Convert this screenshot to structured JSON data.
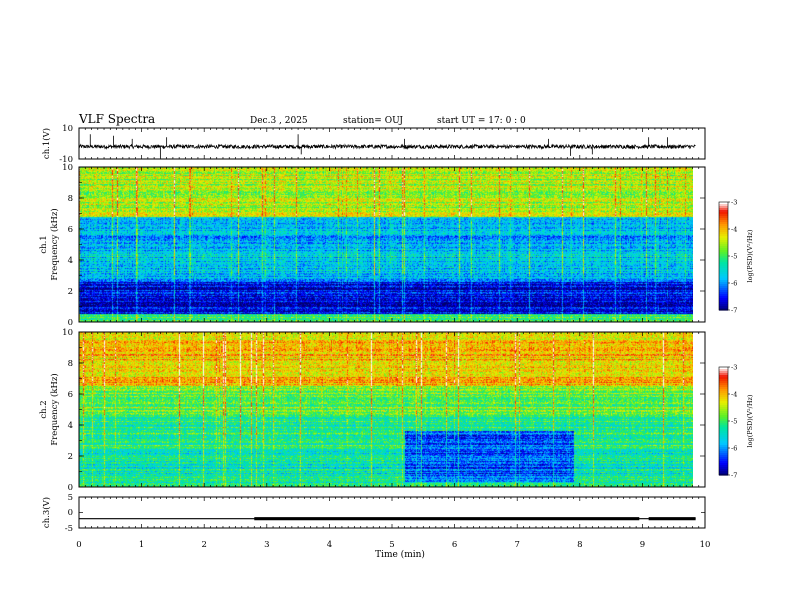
{
  "header": {
    "title": "VLF Spectra",
    "date": "Dec.3  , 2025",
    "station": "station= OUJ",
    "start": "start  UT  =  17: 0  : 0"
  },
  "chart_data": [
    {
      "type": "line",
      "panel": "ch1-waveform",
      "ylabel": "ch.1(V)",
      "ylim": [
        -10,
        10
      ],
      "yticks": [
        "10",
        "-10"
      ],
      "baseline": -2,
      "spikes": [
        {
          "x": 0.18,
          "y": 6
        },
        {
          "x": 0.55,
          "y": 5
        },
        {
          "x": 0.85,
          "y": 3
        },
        {
          "x": 1.3,
          "y": -9
        },
        {
          "x": 1.4,
          "y": 4
        },
        {
          "x": 3.5,
          "y": 6
        },
        {
          "x": 3.55,
          "y": -7
        },
        {
          "x": 5.2,
          "y": 3
        },
        {
          "x": 7.5,
          "y": 3
        },
        {
          "x": 7.85,
          "y": -8
        },
        {
          "x": 8.2,
          "y": -7
        },
        {
          "x": 9.1,
          "y": 4
        },
        {
          "x": 9.4,
          "y": 4
        }
      ]
    },
    {
      "type": "heatmap",
      "panel": "ch1-spectrogram",
      "ylabel_lines": [
        "ch.1",
        "Frequency  (kHz)"
      ],
      "ylim": [
        0,
        10
      ],
      "yticks": [
        "0",
        "2",
        "4",
        "6",
        "8",
        "10"
      ],
      "colorbar": {
        "label": "log(PSD)(V²/Hz)",
        "range": [
          -7,
          -3
        ],
        "ticks": [
          "-3",
          "-4",
          "-5",
          "-6",
          "-7"
        ]
      },
      "bands": [
        {
          "from": 0,
          "to": 0.5,
          "level": 0.5
        },
        {
          "from": 0.5,
          "to": 2.6,
          "level": 0.1
        },
        {
          "from": 2.6,
          "to": 3.5,
          "level": 0.3
        },
        {
          "from": 3.5,
          "to": 4.5,
          "level": 0.35
        },
        {
          "from": 4.5,
          "to": 6.8,
          "level": 0.3
        },
        {
          "from": 6.8,
          "to": 10,
          "level": 0.62
        }
      ]
    },
    {
      "type": "heatmap",
      "panel": "ch2-spectrogram",
      "ylabel_lines": [
        "ch.2",
        "Frequency  (kHz)"
      ],
      "ylim": [
        0,
        10
      ],
      "yticks": [
        "0",
        "2",
        "4",
        "6",
        "8",
        "10"
      ],
      "colorbar": {
        "label": "log(PSD)(V²/Hz)",
        "range": [
          -7,
          -3
        ],
        "ticks": [
          "-3",
          "-4",
          "-5",
          "-6",
          "-7"
        ]
      },
      "bands": [
        {
          "from": 0,
          "to": 2.5,
          "level": 0.42
        },
        {
          "from": 2.5,
          "to": 4.5,
          "level": 0.48
        },
        {
          "from": 4.5,
          "to": 6.5,
          "level": 0.56
        },
        {
          "from": 6.5,
          "to": 10,
          "level": 0.74
        }
      ],
      "dark_region": {
        "x_from": 5.2,
        "x_to": 7.9,
        "f_from": 0.3,
        "f_to": 3.6,
        "level": 0.2
      }
    },
    {
      "type": "line",
      "panel": "ch3-trigger",
      "ylabel": "ch.3(V)",
      "ylim": [
        -5,
        5
      ],
      "yticks": [
        "5",
        "0",
        "-5"
      ],
      "level": -2,
      "thick_segments": [
        [
          2.8,
          8.95
        ],
        [
          9.1,
          9.85
        ]
      ]
    }
  ],
  "time_axis": {
    "label": "Time  (min)",
    "range": [
      0,
      10
    ],
    "ticks": [
      "0",
      "1",
      "2",
      "3",
      "4",
      "5",
      "6",
      "7",
      "8",
      "9",
      "10"
    ]
  }
}
